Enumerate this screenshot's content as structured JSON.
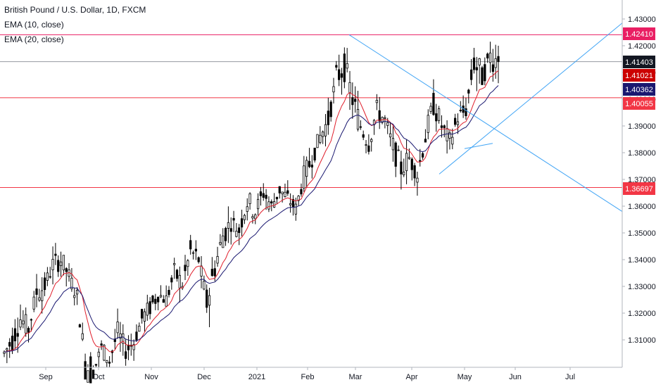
{
  "chart_data": {
    "type": "candlestick",
    "title": "British Pound / U.S. Dollar, 1D, FXCM",
    "indicators": [
      {
        "name": "EMA (10, close)",
        "color": "#e01e2b"
      },
      {
        "name": "EMA (20, close)",
        "color": "#1a1870"
      }
    ],
    "y_axis": {
      "ticks": [
        "1.43000",
        "1.42000",
        "1.41000",
        "1.40000",
        "1.39000",
        "1.38000",
        "1.37000",
        "1.36000",
        "1.35000",
        "1.34000",
        "1.33000",
        "1.32000",
        "1.31000"
      ],
      "ylim": [
        1.3,
        1.431
      ]
    },
    "x_axis": {
      "ticks": [
        "Sep",
        "Oct",
        "Nov",
        "Dec",
        "2021",
        "Feb",
        "Mar",
        "Apr",
        "May",
        "Jun",
        "Jul"
      ]
    },
    "price_labels": [
      {
        "value": "1.42410",
        "color": "#e91e63"
      },
      {
        "value": "1.41403",
        "color": "#131722"
      },
      {
        "value": "1.41021",
        "color": "#cc0000"
      },
      {
        "value": "1.40362",
        "color": "#1a1870"
      },
      {
        "value": "1.40055",
        "color": "#f23645"
      },
      {
        "value": "1.36697",
        "color": "#f23645"
      }
    ],
    "horizontal_levels": [
      {
        "value": 1.4241,
        "color": "#e91e63"
      },
      {
        "value": 1.40055,
        "color": "#f23645"
      },
      {
        "value": 1.36697,
        "color": "#f23645"
      },
      {
        "value": 1.41403,
        "color": "#9598a1"
      }
    ],
    "trendlines": [
      {
        "from": [
          "2021-02-24",
          1.4241
        ],
        "to": [
          "2021-07-28",
          1.358
        ],
        "color": "#42a5f5"
      },
      {
        "from": [
          "2021-04-15",
          1.372
        ],
        "to": [
          "2021-07-28",
          1.4285
        ],
        "color": "#42a5f5"
      },
      {
        "from": [
          "2021-05-03",
          1.3815
        ],
        "to": [
          "2021-05-20",
          1.3835
        ],
        "color": "#42a5f5"
      }
    ],
    "ohlc_shape": [
      [
        1.3,
        1.312,
        1.296,
        1.305
      ],
      [
        1.305,
        1.318,
        1.3,
        1.31
      ],
      [
        1.31,
        1.322,
        1.305,
        1.318
      ],
      [
        1.318,
        1.326,
        1.312,
        1.314
      ],
      [
        1.314,
        1.331,
        1.31,
        1.328
      ],
      [
        1.328,
        1.336,
        1.322,
        1.33
      ],
      [
        1.33,
        1.342,
        1.326,
        1.338
      ],
      [
        1.338,
        1.348,
        1.332,
        1.34
      ],
      [
        1.34,
        1.342,
        1.33,
        1.334
      ],
      [
        1.334,
        1.336,
        1.322,
        1.326
      ],
      [
        1.326,
        1.33,
        1.3,
        1.302
      ],
      [
        1.302,
        1.306,
        1.294,
        1.298
      ],
      [
        1.3,
        1.31,
        1.296,
        1.307
      ],
      [
        1.307,
        1.312,
        1.3,
        1.302
      ],
      [
        1.302,
        1.316,
        1.3,
        1.313
      ],
      [
        1.313,
        1.316,
        1.302,
        1.306
      ],
      [
        1.306,
        1.312,
        1.3,
        1.309
      ],
      [
        1.309,
        1.32,
        1.305,
        1.318
      ],
      [
        1.318,
        1.326,
        1.312,
        1.322
      ],
      [
        1.322,
        1.33,
        1.318,
        1.327
      ],
      [
        1.327,
        1.333,
        1.32,
        1.325
      ],
      [
        1.325,
        1.338,
        1.322,
        1.335
      ],
      [
        1.335,
        1.34,
        1.326,
        1.331
      ],
      [
        1.331,
        1.346,
        1.328,
        1.343
      ],
      [
        1.343,
        1.35,
        1.336,
        1.34
      ],
      [
        1.34,
        1.344,
        1.32,
        1.324
      ],
      [
        1.324,
        1.34,
        1.322,
        1.337
      ],
      [
        1.337,
        1.352,
        1.334,
        1.349
      ],
      [
        1.349,
        1.358,
        1.344,
        1.354
      ],
      [
        1.354,
        1.362,
        1.348,
        1.351
      ],
      [
        1.351,
        1.366,
        1.348,
        1.362
      ],
      [
        1.362,
        1.37,
        1.356,
        1.358
      ],
      [
        1.358,
        1.368,
        1.354,
        1.365
      ],
      [
        1.365,
        1.37,
        1.358,
        1.36
      ],
      [
        1.36,
        1.368,
        1.356,
        1.366
      ],
      [
        1.366,
        1.372,
        1.36,
        1.363
      ],
      [
        1.363,
        1.368,
        1.356,
        1.359
      ],
      [
        1.359,
        1.374,
        1.357,
        1.371
      ],
      [
        1.371,
        1.382,
        1.368,
        1.378
      ],
      [
        1.378,
        1.39,
        1.374,
        1.386
      ],
      [
        1.386,
        1.396,
        1.38,
        1.392
      ],
      [
        1.392,
        1.41,
        1.39,
        1.408
      ],
      [
        1.408,
        1.424,
        1.402,
        1.412
      ],
      [
        1.412,
        1.416,
        1.396,
        1.4
      ],
      [
        1.4,
        1.404,
        1.386,
        1.39
      ],
      [
        1.39,
        1.398,
        1.38,
        1.384
      ],
      [
        1.384,
        1.398,
        1.382,
        1.396
      ],
      [
        1.396,
        1.4,
        1.386,
        1.392
      ],
      [
        1.392,
        1.396,
        1.378,
        1.382
      ],
      [
        1.382,
        1.388,
        1.37,
        1.374
      ],
      [
        1.374,
        1.382,
        1.368,
        1.378
      ],
      [
        1.378,
        1.384,
        1.368,
        1.372
      ],
      [
        1.372,
        1.388,
        1.37,
        1.386
      ],
      [
        1.386,
        1.402,
        1.384,
        1.398
      ],
      [
        1.398,
        1.4,
        1.386,
        1.39
      ],
      [
        1.39,
        1.396,
        1.38,
        1.384
      ],
      [
        1.384,
        1.396,
        1.382,
        1.393
      ],
      [
        1.393,
        1.4,
        1.386,
        1.396
      ],
      [
        1.396,
        1.418,
        1.394,
        1.414
      ],
      [
        1.414,
        1.42,
        1.404,
        1.408
      ],
      [
        1.408,
        1.424,
        1.402,
        1.416
      ],
      [
        1.416,
        1.42,
        1.406,
        1.41403
      ]
    ]
  }
}
